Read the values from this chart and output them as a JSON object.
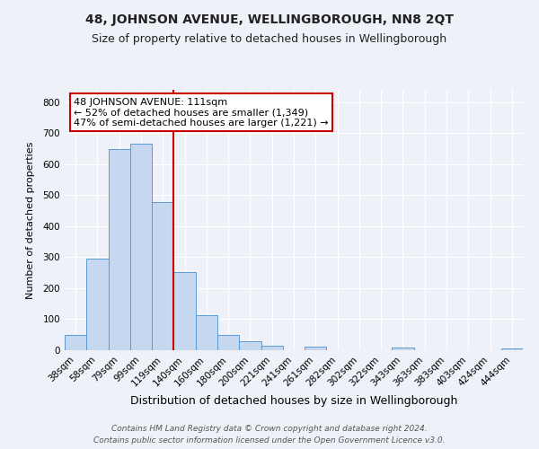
{
  "title": "48, JOHNSON AVENUE, WELLINGBOROUGH, NN8 2QT",
  "subtitle": "Size of property relative to detached houses in Wellingborough",
  "xlabel": "Distribution of detached houses by size in Wellingborough",
  "ylabel": "Number of detached properties",
  "bar_labels": [
    "38sqm",
    "58sqm",
    "79sqm",
    "99sqm",
    "119sqm",
    "140sqm",
    "160sqm",
    "180sqm",
    "200sqm",
    "221sqm",
    "241sqm",
    "261sqm",
    "282sqm",
    "302sqm",
    "322sqm",
    "343sqm",
    "363sqm",
    "383sqm",
    "403sqm",
    "424sqm",
    "444sqm"
  ],
  "bar_values": [
    48,
    295,
    650,
    665,
    478,
    253,
    113,
    50,
    28,
    14,
    0,
    12,
    0,
    0,
    0,
    8,
    0,
    0,
    0,
    0,
    7
  ],
  "bar_color": "#c5d8f0",
  "bar_edge_color": "#5b9bd5",
  "bar_width": 1.0,
  "ylim": [
    0,
    840
  ],
  "yticks": [
    0,
    100,
    200,
    300,
    400,
    500,
    600,
    700,
    800
  ],
  "vline_x": 4.5,
  "vline_color": "#cc0000",
  "annotation_title": "48 JOHNSON AVENUE: 111sqm",
  "annotation_line1": "← 52% of detached houses are smaller (1,349)",
  "annotation_line2": "47% of semi-detached houses are larger (1,221) →",
  "annotation_box_color": "#ffffff",
  "annotation_box_edge": "#cc0000",
  "footer1": "Contains HM Land Registry data © Crown copyright and database right 2024.",
  "footer2": "Contains public sector information licensed under the Open Government Licence v3.0.",
  "bg_color": "#eef2f8",
  "grid_color": "#ffffff",
  "title_fontsize": 10,
  "subtitle_fontsize": 9,
  "xlabel_fontsize": 9,
  "ylabel_fontsize": 8,
  "tick_fontsize": 7.5,
  "footer_fontsize": 6.5,
  "ann_fontsize": 8
}
